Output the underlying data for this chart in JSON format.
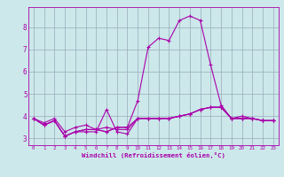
{
  "title": "",
  "xlabel": "Windchill (Refroidissement éolien,°C)",
  "ylabel": "",
  "bg_color": "#cce8ea",
  "line_color": "#aa00aa",
  "grid_color": "#99aabb",
  "xlim": [
    -0.5,
    23.5
  ],
  "ylim": [
    2.7,
    8.9
  ],
  "yticks": [
    3,
    4,
    5,
    6,
    7,
    8
  ],
  "xticks": [
    0,
    1,
    2,
    3,
    4,
    5,
    6,
    7,
    8,
    9,
    10,
    11,
    12,
    13,
    14,
    15,
    16,
    17,
    18,
    19,
    20,
    21,
    22,
    23
  ],
  "series": [
    [
      3.9,
      3.6,
      3.8,
      3.1,
      3.3,
      3.3,
      3.3,
      4.3,
      3.3,
      3.2,
      3.9,
      3.9,
      3.9,
      3.9,
      4.0,
      4.1,
      4.3,
      4.4,
      4.4,
      3.9,
      3.9,
      3.9,
      3.8,
      3.8
    ],
    [
      3.9,
      3.6,
      3.8,
      3.1,
      3.3,
      3.4,
      3.4,
      3.3,
      3.5,
      3.5,
      4.7,
      7.1,
      7.5,
      7.4,
      8.3,
      8.5,
      8.3,
      6.3,
      4.5,
      3.9,
      4.0,
      3.9,
      3.8,
      3.8
    ],
    [
      3.9,
      3.6,
      3.8,
      3.1,
      3.3,
      3.4,
      3.4,
      3.3,
      3.5,
      3.5,
      3.9,
      3.9,
      3.9,
      3.9,
      4.0,
      4.1,
      4.3,
      4.4,
      4.4,
      3.9,
      3.9,
      3.9,
      3.8,
      3.8
    ],
    [
      3.9,
      3.7,
      3.9,
      3.3,
      3.5,
      3.6,
      3.4,
      3.5,
      3.4,
      3.4,
      3.9,
      3.9,
      3.9,
      3.9,
      4.0,
      4.1,
      4.3,
      4.4,
      4.4,
      3.9,
      3.9,
      3.9,
      3.8,
      3.8
    ]
  ]
}
